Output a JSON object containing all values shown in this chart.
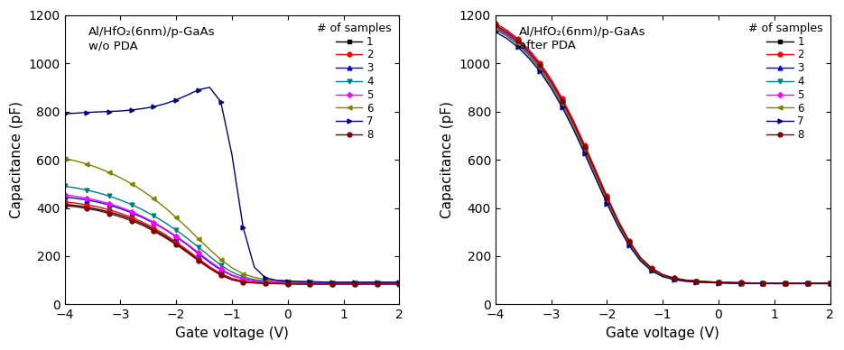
{
  "title_left": "Al/HfO₂(6nm)/p-GaAs\nw/o PDA",
  "title_right": "Al/HfO₂(6nm)/p-GaAs\nafter PDA",
  "xlabel": "Gate voltage (V)",
  "ylabel": "Capacitance (pF)",
  "legend_title": "# of samples",
  "xlim": [
    -4,
    2
  ],
  "ylim": [
    0,
    1200
  ],
  "yticks": [
    0,
    200,
    400,
    600,
    800,
    1000,
    1200
  ],
  "xticks": [
    -4,
    -3,
    -2,
    -1,
    0,
    1,
    2
  ],
  "samples": [
    {
      "id": 1,
      "color": "#000000",
      "marker": "s",
      "ms": 3.5
    },
    {
      "id": 2,
      "color": "#ff0000",
      "marker": "o",
      "ms": 3.5
    },
    {
      "id": 3,
      "color": "#0000ff",
      "marker": "^",
      "ms": 3.5
    },
    {
      "id": 4,
      "color": "#008080",
      "marker": "v",
      "ms": 3.5
    },
    {
      "id": 5,
      "color": "#ff00ff",
      "marker": "D",
      "ms": 3.0
    },
    {
      "id": 6,
      "color": "#808000",
      "marker": "<",
      "ms": 3.5
    },
    {
      "id": 7,
      "color": "#000080",
      "marker": ">",
      "ms": 3.5
    },
    {
      "id": 8,
      "color": "#800000",
      "marker": "o",
      "ms": 3.5
    }
  ],
  "left_curves": {
    "x": [
      -4.0,
      -3.8,
      -3.6,
      -3.4,
      -3.2,
      -3.0,
      -2.8,
      -2.6,
      -2.4,
      -2.2,
      -2.0,
      -1.8,
      -1.6,
      -1.4,
      -1.2,
      -1.0,
      -0.8,
      -0.6,
      -0.4,
      -0.2,
      0.0,
      0.2,
      0.4,
      0.6,
      0.8,
      1.0,
      1.2,
      1.4,
      1.6,
      1.8,
      2.0
    ],
    "curves": [
      [
        415,
        410,
        403,
        394,
        383,
        370,
        354,
        334,
        310,
        283,
        253,
        220,
        185,
        152,
        124,
        104,
        94,
        90,
        88,
        87,
        86,
        85,
        85,
        85,
        85,
        85,
        85,
        85,
        85,
        85,
        85
      ],
      [
        425,
        420,
        413,
        404,
        392,
        378,
        361,
        341,
        317,
        290,
        259,
        225,
        190,
        156,
        128,
        108,
        97,
        92,
        90,
        88,
        87,
        86,
        86,
        86,
        86,
        86,
        86,
        86,
        86,
        86,
        86
      ],
      [
        445,
        440,
        433,
        424,
        412,
        397,
        380,
        360,
        337,
        311,
        280,
        247,
        210,
        174,
        143,
        120,
        106,
        98,
        94,
        91,
        89,
        88,
        87,
        87,
        87,
        87,
        87,
        87,
        87,
        87,
        87
      ],
      [
        490,
        483,
        474,
        463,
        449,
        433,
        414,
        392,
        367,
        339,
        308,
        274,
        237,
        199,
        163,
        134,
        114,
        103,
        97,
        94,
        92,
        90,
        89,
        89,
        88,
        88,
        88,
        88,
        88,
        88,
        88
      ],
      [
        455,
        448,
        440,
        430,
        418,
        403,
        385,
        364,
        340,
        313,
        283,
        250,
        215,
        179,
        147,
        122,
        107,
        99,
        95,
        92,
        90,
        89,
        88,
        88,
        87,
        87,
        87,
        87,
        87,
        87,
        87
      ],
      [
        605,
        595,
        582,
        566,
        547,
        525,
        500,
        471,
        438,
        401,
        360,
        317,
        272,
        228,
        186,
        152,
        127,
        112,
        104,
        100,
        97,
        95,
        94,
        93,
        92,
        92,
        92,
        92,
        92,
        92,
        92
      ],
      [
        790,
        793,
        796,
        798,
        800,
        802,
        806,
        812,
        820,
        832,
        848,
        868,
        890,
        900,
        840,
        620,
        320,
        155,
        110,
        100,
        97,
        95,
        94,
        93,
        92,
        92,
        92,
        92,
        92,
        92,
        92
      ],
      [
        410,
        405,
        398,
        389,
        377,
        363,
        347,
        328,
        304,
        277,
        248,
        215,
        181,
        149,
        121,
        102,
        92,
        89,
        87,
        86,
        85,
        84,
        84,
        84,
        84,
        84,
        84,
        84,
        84,
        84,
        84
      ]
    ]
  },
  "right_curves": {
    "x": [
      -4.0,
      -3.8,
      -3.6,
      -3.4,
      -3.2,
      -3.0,
      -2.8,
      -2.6,
      -2.4,
      -2.2,
      -2.0,
      -1.8,
      -1.6,
      -1.4,
      -1.2,
      -1.0,
      -0.8,
      -0.6,
      -0.4,
      -0.2,
      0.0,
      0.2,
      0.4,
      0.6,
      0.8,
      1.0,
      1.2,
      1.4,
      1.6,
      1.8,
      2.0
    ],
    "curves": [
      [
        1155,
        1128,
        1092,
        1046,
        989,
        920,
        840,
        750,
        650,
        545,
        440,
        342,
        258,
        191,
        148,
        122,
        108,
        100,
        96,
        93,
        91,
        90,
        89,
        88,
        88,
        87,
        87,
        87,
        87,
        87,
        87
      ],
      [
        1165,
        1138,
        1102,
        1057,
        1001,
        933,
        853,
        762,
        661,
        556,
        449,
        349,
        263,
        195,
        151,
        124,
        109,
        101,
        97,
        94,
        92,
        91,
        90,
        89,
        89,
        88,
        88,
        88,
        88,
        88,
        88
      ],
      [
        1148,
        1121,
        1085,
        1039,
        983,
        914,
        834,
        743,
        643,
        538,
        433,
        336,
        254,
        188,
        145,
        120,
        106,
        99,
        95,
        92,
        91,
        89,
        89,
        88,
        88,
        87,
        87,
        87,
        87,
        87,
        87
      ],
      [
        1140,
        1113,
        1077,
        1031,
        975,
        906,
        826,
        735,
        635,
        530,
        426,
        330,
        249,
        184,
        143,
        118,
        105,
        98,
        94,
        92,
        90,
        89,
        88,
        87,
        87,
        87,
        87,
        87,
        87,
        87,
        87
      ],
      [
        1152,
        1125,
        1089,
        1043,
        987,
        918,
        838,
        747,
        647,
        542,
        437,
        339,
        256,
        190,
        147,
        121,
        107,
        100,
        96,
        93,
        91,
        90,
        89,
        88,
        88,
        87,
        87,
        87,
        87,
        87,
        87
      ],
      [
        1143,
        1116,
        1080,
        1034,
        978,
        909,
        829,
        738,
        638,
        533,
        429,
        333,
        251,
        186,
        144,
        119,
        106,
        99,
        95,
        92,
        90,
        89,
        88,
        88,
        87,
        87,
        87,
        87,
        87,
        87,
        87
      ],
      [
        1130,
        1103,
        1067,
        1021,
        965,
        896,
        816,
        725,
        625,
        521,
        418,
        323,
        243,
        180,
        139,
        115,
        103,
        96,
        93,
        91,
        89,
        88,
        87,
        87,
        87,
        86,
        86,
        86,
        86,
        86,
        86
      ],
      [
        1158,
        1131,
        1095,
        1049,
        993,
        924,
        844,
        753,
        653,
        548,
        443,
        344,
        260,
        193,
        149,
        123,
        109,
        101,
        97,
        94,
        92,
        91,
        90,
        89,
        89,
        88,
        88,
        88,
        88,
        88,
        88
      ]
    ]
  }
}
